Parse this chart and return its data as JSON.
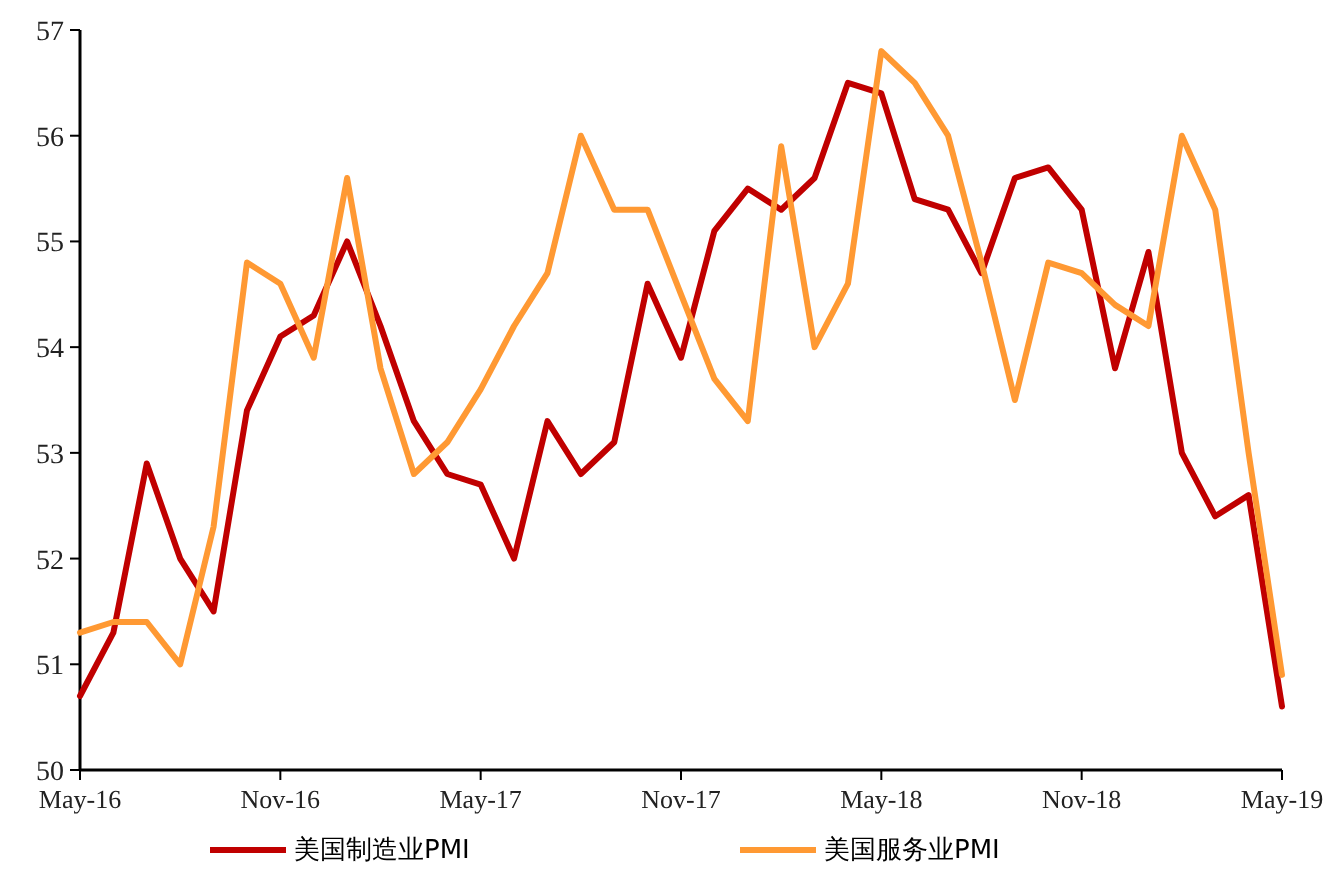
{
  "chart_data": {
    "type": "line",
    "categories": [
      "May-16",
      null,
      null,
      null,
      null,
      null,
      "Nov-16",
      null,
      null,
      null,
      null,
      null,
      "May-17",
      null,
      null,
      null,
      null,
      null,
      "Nov-17",
      null,
      null,
      null,
      null,
      null,
      "May-18",
      null,
      null,
      null,
      null,
      null,
      "Nov-18",
      null,
      null,
      null,
      null,
      null,
      "May-19"
    ],
    "series": [
      {
        "name": "美国制造业PMI",
        "color": "#c00000",
        "values": [
          50.7,
          51.3,
          52.9,
          52.0,
          51.5,
          53.4,
          54.1,
          54.3,
          55.0,
          54.2,
          53.3,
          52.8,
          52.7,
          52.0,
          53.3,
          52.8,
          53.1,
          54.6,
          53.9,
          55.1,
          55.5,
          55.3,
          55.6,
          56.5,
          56.4,
          55.4,
          55.3,
          54.7,
          55.6,
          55.7,
          55.3,
          53.8,
          54.9,
          53.0,
          52.4,
          52.6,
          50.6
        ]
      },
      {
        "name": "美国服务业PMI",
        "color": "#ff9933",
        "values": [
          51.3,
          51.4,
          51.4,
          51.0,
          52.3,
          54.8,
          54.6,
          53.9,
          55.6,
          53.8,
          52.8,
          53.1,
          53.6,
          54.2,
          54.7,
          56.0,
          55.3,
          55.3,
          54.5,
          53.7,
          53.3,
          55.9,
          54.0,
          54.6,
          56.8,
          56.5,
          56.0,
          54.8,
          53.5,
          54.8,
          54.7,
          54.4,
          54.2,
          56.0,
          55.3,
          53.0,
          50.9
        ]
      }
    ],
    "ylim": [
      50,
      57
    ],
    "yticks": [
      50,
      51,
      52,
      53,
      54,
      55,
      56,
      57
    ],
    "grid": false,
    "legend": "bottom",
    "marker": "none",
    "line_style": "solid"
  }
}
